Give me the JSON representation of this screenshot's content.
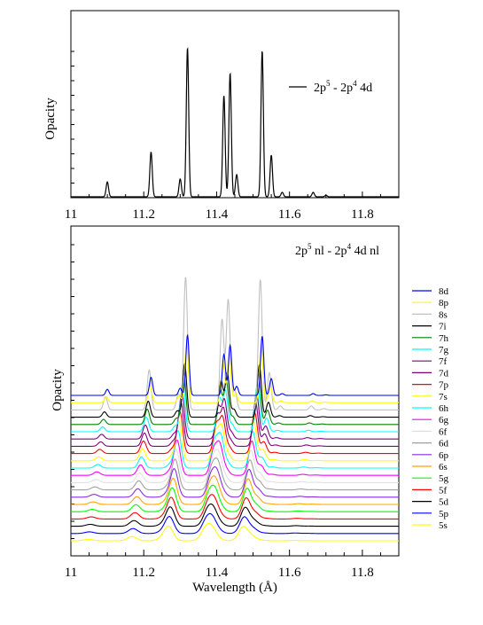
{
  "chart_data": [
    {
      "type": "line",
      "ylabel": "Opacity",
      "xlim": [
        11,
        11.9
      ],
      "x_ticks": [
        "11",
        "11.2",
        "11.4",
        "11.6",
        "11.8"
      ],
      "legend": "top-right",
      "series": [
        {
          "name": "2p5 - 2p4 4d",
          "color": "#000000",
          "peaks": [
            {
              "x": 11.1,
              "h": 0.1
            },
            {
              "x": 11.22,
              "h": 0.3
            },
            {
              "x": 11.3,
              "h": 0.12
            },
            {
              "x": 11.32,
              "h": 1.0
            },
            {
              "x": 11.42,
              "h": 0.68
            },
            {
              "x": 11.437,
              "h": 0.83
            },
            {
              "x": 11.455,
              "h": 0.15
            },
            {
              "x": 11.525,
              "h": 0.98
            },
            {
              "x": 11.55,
              "h": 0.28
            },
            {
              "x": 11.58,
              "h": 0.03
            },
            {
              "x": 11.665,
              "h": 0.03
            },
            {
              "x": 11.7,
              "h": 0.01
            }
          ]
        }
      ]
    },
    {
      "type": "line",
      "title": "2p5 nl - 2p4 4d nl",
      "xlabel": "Wavelength (Å)",
      "ylabel": "Opacity",
      "xlim": [
        11,
        11.9
      ],
      "x_ticks": [
        "11",
        "11.2",
        "11.4",
        "11.6",
        "11.8"
      ],
      "legend": "right",
      "series": [
        {
          "name": "8d",
          "color": "#0000ff"
        },
        {
          "name": "8p",
          "color": "#ffff00"
        },
        {
          "name": "8s",
          "color": "#c0c0c0"
        },
        {
          "name": "7i",
          "color": "#000000"
        },
        {
          "name": "7h",
          "color": "#008000"
        },
        {
          "name": "7g",
          "color": "#00ffff"
        },
        {
          "name": "7f",
          "color": "#800080"
        },
        {
          "name": "7d",
          "color": "#800080"
        },
        {
          "name": "7p",
          "color": "#ff0000"
        },
        {
          "name": "7s",
          "color": "#ffff00"
        },
        {
          "name": "6h",
          "color": "#00ffff"
        },
        {
          "name": "6g",
          "color": "#ff00ff"
        },
        {
          "name": "6f",
          "color": "#e0e0e0"
        },
        {
          "name": "6d",
          "color": "#a0a0a0"
        },
        {
          "name": "6p",
          "color": "#8a2be2"
        },
        {
          "name": "6s",
          "color": "#ffa500"
        },
        {
          "name": "5g",
          "color": "#00ff00"
        },
        {
          "name": "5f",
          "color": "#ff0000"
        },
        {
          "name": "5d",
          "color": "#000000"
        },
        {
          "name": "5p",
          "color": "#0000ff"
        },
        {
          "name": "5s",
          "color": "#ffff00"
        }
      ]
    }
  ]
}
